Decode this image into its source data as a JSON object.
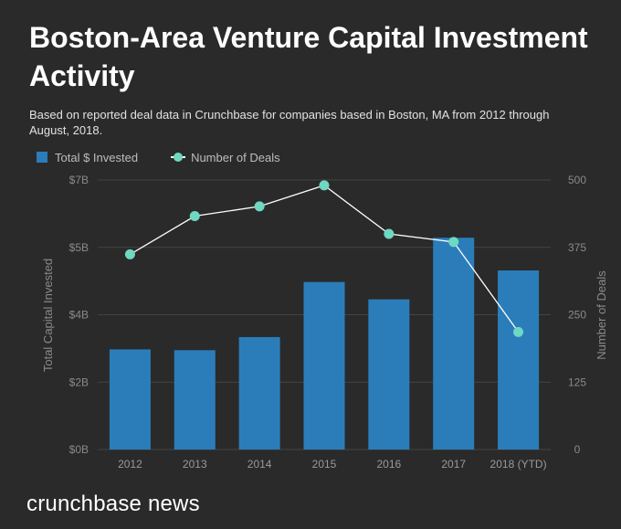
{
  "title": "Boston-Area Venture Capital Investment Activity",
  "subtitle": "Based on reported deal data in Crunchbase for companies based in Boston, MA from 2012 through August, 2018.",
  "brand": "crunchbase news",
  "colors": {
    "background": "#2a2a2a",
    "bar": "#2b7dba",
    "dot": "#6fd8c2",
    "line": "#ffffff"
  },
  "chart_data": {
    "type": "bar",
    "categories": [
      "2012",
      "2013",
      "2014",
      "2015",
      "2016",
      "2017",
      "2018 (YTD)"
    ],
    "series": [
      {
        "name": "Total $ Invested",
        "type": "bar",
        "axis": "left",
        "values": [
          2.6,
          2.58,
          2.92,
          4.35,
          3.9,
          5.5,
          4.65
        ]
      },
      {
        "name": "Number of Deals",
        "type": "line",
        "axis": "right",
        "values": [
          362,
          433,
          451,
          490,
          400,
          385,
          218
        ]
      }
    ],
    "ylabel": "Total Capital Invested",
    "y2label": "Number of Deals",
    "ylim": [
      0,
      7
    ],
    "y2lim": [
      0,
      500
    ],
    "yticks": [
      0,
      1.75,
      3.5,
      5.25,
      7
    ],
    "ytick_labels": [
      "$0B",
      "$2B",
      "$4B",
      "$5B",
      "$7B"
    ],
    "y2ticks": [
      0,
      125,
      250,
      375,
      500
    ],
    "y2tick_labels": [
      "0",
      "125",
      "250",
      "375",
      "500"
    ],
    "grid": true,
    "legend": "top-left"
  }
}
